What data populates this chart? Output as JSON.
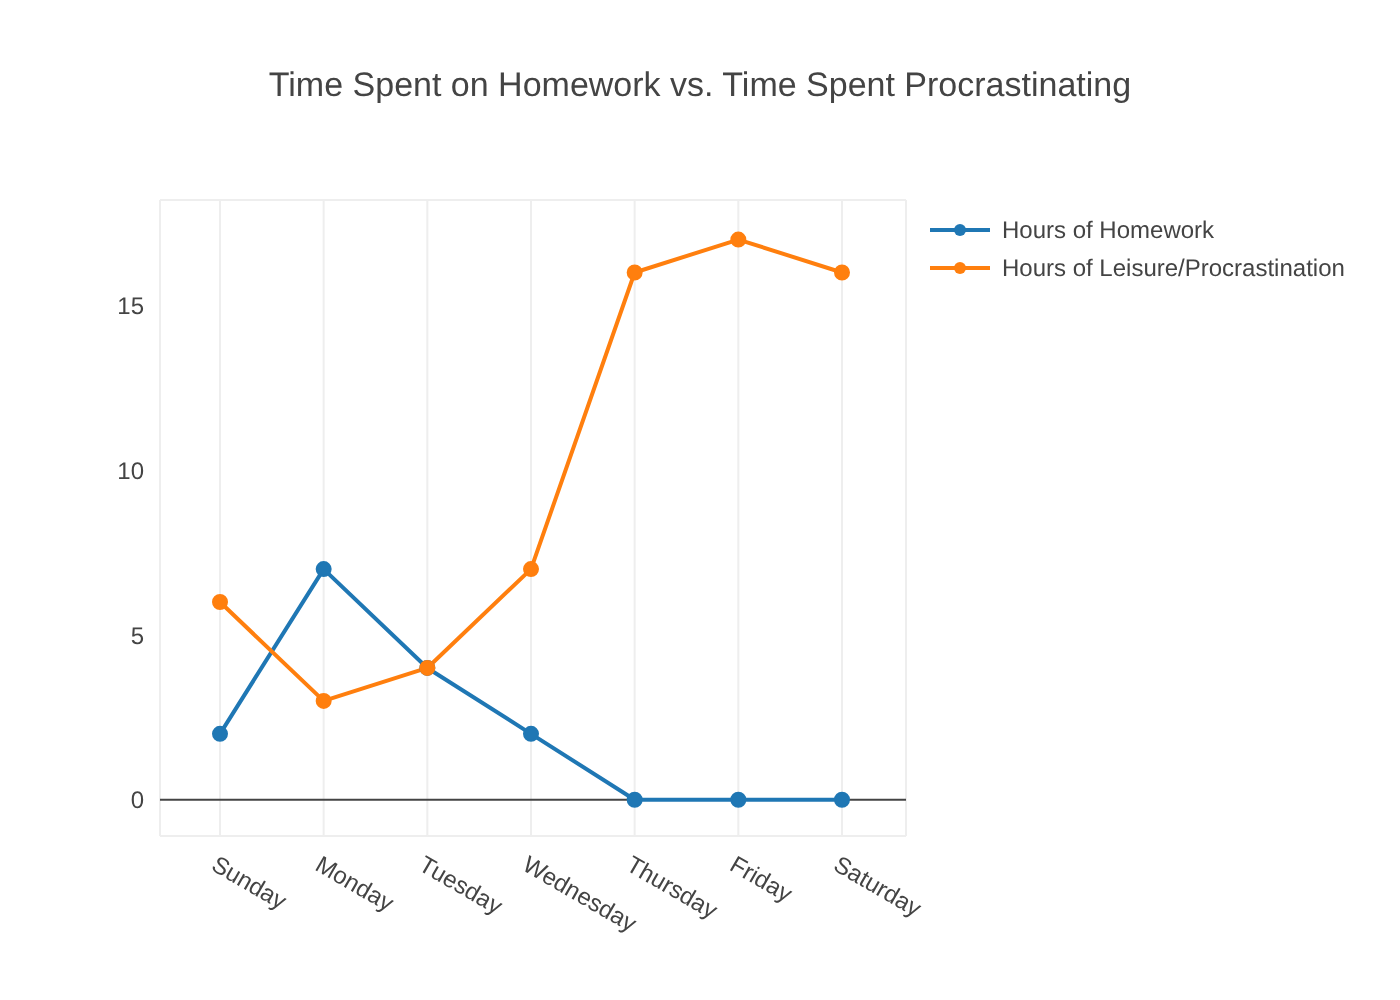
{
  "chart_data": {
    "type": "line",
    "title": "Time Spent on Homework vs. Time Spent Procrastinating",
    "categories": [
      "Sunday",
      "Monday",
      "Tuesday",
      "Wednesday",
      "Thursday",
      "Friday",
      "Saturday"
    ],
    "series": [
      {
        "name": "Hours of Homework",
        "color": "#1f77b4",
        "values": [
          2,
          7,
          4,
          2,
          0,
          0,
          0
        ]
      },
      {
        "name": "Hours of Leisure/Procrastination",
        "color": "#ff7f0e",
        "values": [
          6,
          3,
          4,
          7,
          16,
          17,
          16
        ]
      }
    ],
    "ylim": [
      -1.1,
      18.2
    ],
    "yticks": [
      0,
      5,
      10,
      15
    ],
    "grid": true,
    "legend": "top right",
    "marker": "circle",
    "line_style": "solid",
    "ref_lines": [
      {
        "axis": "y",
        "value": 0,
        "color": "#444444"
      }
    ]
  }
}
